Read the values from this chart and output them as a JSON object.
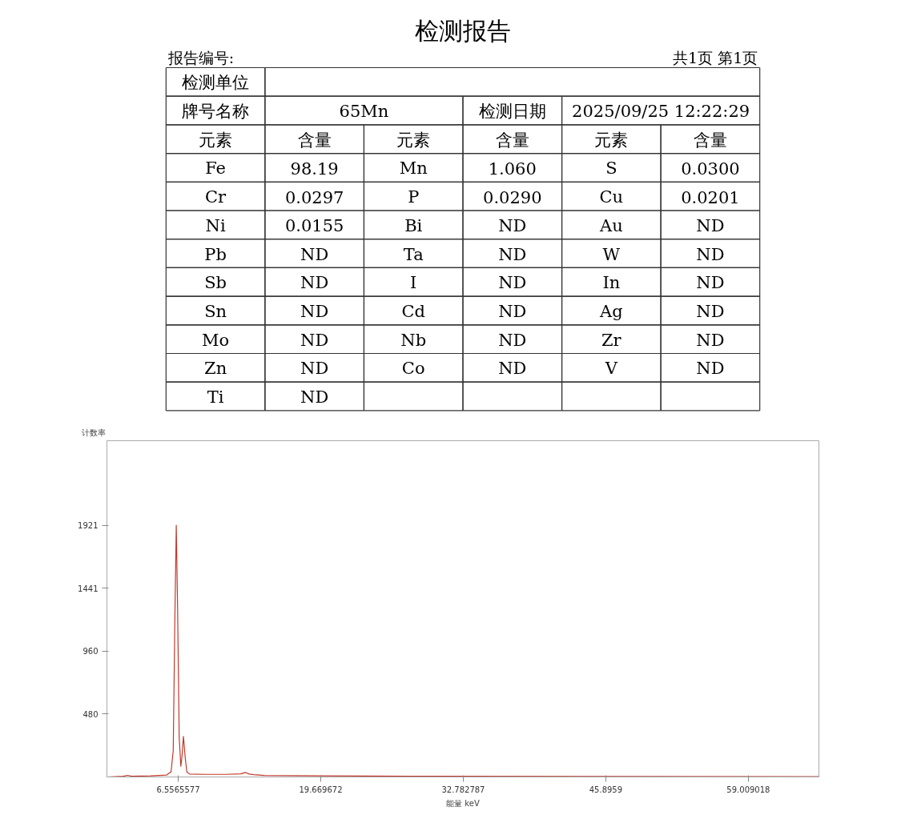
{
  "chart_data": [
    {
      "type": "other",
      "title": "检测报告",
      "annotations": [
        "报告编号:",
        "共1页 第1页",
        "检测单位",
        "牌号名称",
        "65Mn",
        "检测日期",
        "2025/09/25 12:22:29",
        "元素",
        "含量",
        "元素",
        "含量",
        "元素",
        "含量",
        "Fe",
        "98.19",
        "Mn",
        "1.060",
        "S",
        "0.0300",
        "Cr",
        "0.0297",
        "P",
        "0.0290",
        "Cu",
        "0.0201",
        "Ni",
        "0.0155",
        "Bi",
        "ND",
        "Au",
        "ND",
        "Pb",
        "ND",
        "Ta",
        "ND",
        "W",
        "ND",
        "Sb",
        "ND",
        "I",
        "ND",
        "In",
        "ND",
        "Sn",
        "ND",
        "Cd",
        "ND",
        "Ag",
        "ND",
        "Mo",
        "ND",
        "Nb",
        "ND",
        "Zr",
        "ND",
        "Zn",
        "ND",
        "Co",
        "ND",
        "V",
        "ND",
        "Ti",
        "ND"
      ]
    },
    {
      "type": "line",
      "ylabel": "计数率",
      "xlabel": "能量 keV",
      "xlim": [
        0,
        65.5
      ],
      "ylim": [
        0,
        2566
      ],
      "xticks": [
        6.5565577,
        19.669672,
        32.782787,
        45.8959,
        59.009018
      ],
      "yticks": [
        480,
        960,
        1441,
        1921
      ],
      "grid": false,
      "marker": "none",
      "line_style": "solid",
      "x": [
        0,
        1.5,
        1.9,
        2.3,
        4.0,
        5.5,
        5.9,
        6.1,
        6.25,
        6.38,
        6.5,
        6.65,
        6.8,
        6.9,
        7.04,
        7.2,
        7.35,
        7.6,
        9,
        11,
        12.3,
        12.76,
        13.1,
        13.5,
        14.5,
        20,
        30,
        45,
        65.5
      ],
      "series": [
        {
          "color": "#c0392b",
          "values": [
            0,
            5,
            12,
            5,
            8,
            15,
            40,
            200,
            1200,
            1921,
            1300,
            300,
            82,
            150,
            310,
            150,
            40,
            22,
            20,
            20,
            24,
            34,
            22,
            18,
            12,
            8,
            5,
            4,
            3
          ]
        }
      ]
    }
  ]
}
